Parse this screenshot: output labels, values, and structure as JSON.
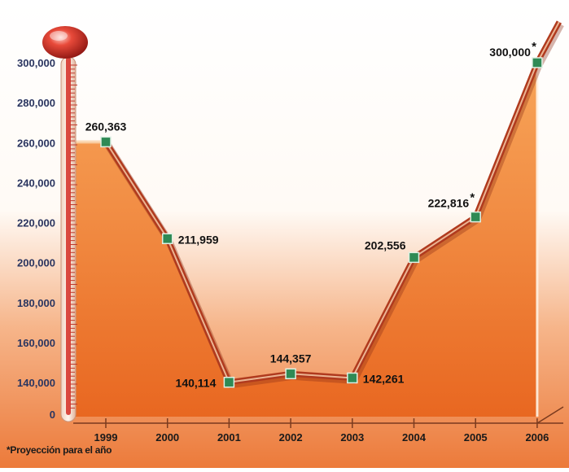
{
  "colors": {
    "fill_top": "#f7a050",
    "fill_bottom": "#e8651e",
    "line_outer": "#b03a1e",
    "line_inner": "#f2c2a0",
    "marker": "#2f8a55",
    "axis_text": "#2a3560",
    "bulb": "#d42a22"
  },
  "footnote": "*Proyección para el año",
  "chart_data": {
    "type": "area",
    "categories": [
      "1999",
      "2000",
      "2001",
      "2002",
      "2003",
      "2004",
      "2005",
      "2006"
    ],
    "values": [
      260363,
      211959,
      140114,
      144357,
      142261,
      202556,
      222816,
      300000
    ],
    "data_labels": [
      "260,363",
      "211,959",
      "140,114",
      "144,357",
      "142,261",
      "202,556",
      "222,816",
      "300,000"
    ],
    "projected": [
      false,
      false,
      false,
      false,
      false,
      false,
      true,
      true
    ],
    "projection_mark": "*",
    "ylim": [
      130000,
      300000
    ],
    "yticks": [
      {
        "value": 300000,
        "label": "300,000"
      },
      {
        "value": 280000,
        "label": "280,000"
      },
      {
        "value": 260000,
        "label": "260,000"
      },
      {
        "value": 240000,
        "label": "240,000"
      },
      {
        "value": 220000,
        "label": "220,000"
      },
      {
        "value": 200000,
        "label": "200,000"
      },
      {
        "value": 180000,
        "label": "180,000"
      },
      {
        "value": 160000,
        "label": "160,000"
      },
      {
        "value": 140000,
        "label": "140,000"
      }
    ],
    "baseline_label": "0",
    "grid": false,
    "title": "",
    "xlabel": "",
    "ylabel": ""
  }
}
